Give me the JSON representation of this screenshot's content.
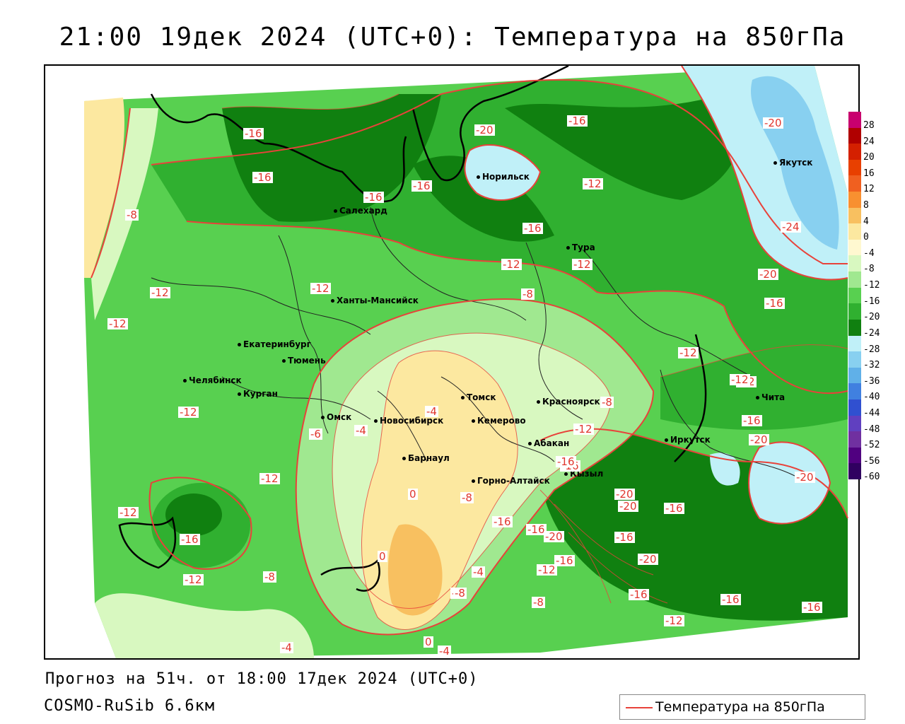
{
  "title": "21:00 19дек 2024 (UTC+0): Температура на 850гПа",
  "footer": {
    "forecast": "Прогноз на 51ч. от 18:00 17дек 2024 (UTC+0)",
    "model": "COSMO-RuSib 6.6км"
  },
  "legend": {
    "label": "Температура на 850гПа",
    "line_color": "#e8423a"
  },
  "colorbar": {
    "levels": [
      "28",
      "24",
      "20",
      "16",
      "12",
      "8",
      "4",
      "0",
      "-4",
      "-8",
      "-12",
      "-16",
      "-20",
      "-24",
      "-28",
      "-32",
      "-36",
      "-40",
      "-44",
      "-48",
      "-52",
      "-56",
      "-60"
    ],
    "colors": [
      "#c8006e",
      "#b00000",
      "#d42000",
      "#e84000",
      "#f06020",
      "#f89030",
      "#f8c060",
      "#fce8a0",
      "#fff8d0",
      "#d8f8c0",
      "#a0e890",
      "#58d050",
      "#30b030",
      "#108010",
      "#c0f0f8",
      "#88d0f0",
      "#60b0e8",
      "#4080e0",
      "#3050d0",
      "#6040c0",
      "#7030a0",
      "#500080",
      "#300060"
    ]
  },
  "cities": [
    {
      "name": "Норильск"
    },
    {
      "name": "Якутск"
    },
    {
      "name": "Салехард"
    },
    {
      "name": "Тура"
    },
    {
      "name": "Ханты-Мансийск"
    },
    {
      "name": "Екатеринбург"
    },
    {
      "name": "Тюмень"
    },
    {
      "name": "Челябинск"
    },
    {
      "name": "Курган"
    },
    {
      "name": "Омск"
    },
    {
      "name": "Новосибирск"
    },
    {
      "name": "Томск"
    },
    {
      "name": "Кемерово"
    },
    {
      "name": "Красноярск"
    },
    {
      "name": "Барнаул"
    },
    {
      "name": "Абакан"
    },
    {
      "name": "Кызыл"
    },
    {
      "name": "Горно-Алтайск"
    },
    {
      "name": "Иркутск"
    },
    {
      "name": "Чита"
    }
  ],
  "contour_labels": [
    "-16",
    "-16",
    "-16",
    "-16",
    "-20",
    "-16",
    "-12",
    "-16",
    "-12",
    "-12",
    "-12",
    "-8",
    "-12",
    "-12",
    "-8",
    "-12",
    "-12",
    "-12",
    "-4",
    "-4",
    "-6",
    "-8",
    "-12",
    "-12",
    "-16",
    "-12",
    "-8",
    "-8",
    "0",
    "-8",
    "0",
    "-4",
    "-8",
    "-4",
    "-4",
    "0",
    "-16",
    "-16",
    "-20",
    "-20",
    "-16",
    "-16",
    "-16",
    "-20",
    "-16",
    "-12",
    "-16",
    "-16",
    "-20",
    "-24",
    "-20",
    "-16",
    "-12",
    "-16",
    "-20",
    "-20",
    "-12",
    "-16",
    "-12",
    "-20",
    "-16",
    "-8"
  ]
}
